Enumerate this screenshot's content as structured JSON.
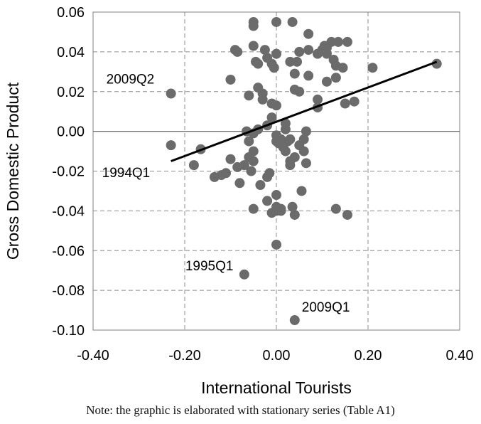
{
  "chart_data": {
    "type": "scatter",
    "xlabel": "International Tourists",
    "ylabel": "Gross Domestic Product",
    "xlim": [
      -0.4,
      0.4
    ],
    "ylim": [
      -0.1,
      0.06
    ],
    "x_ticks": [
      "-0.40",
      "-0.20",
      "0.00",
      "0.20",
      "0.40"
    ],
    "y_ticks": [
      "0.06",
      "0.04",
      "0.02",
      "0.00",
      "-0.02",
      "-0.04",
      "-0.06",
      "-0.08",
      "-0.10"
    ],
    "x_tick_values": [
      -0.4,
      -0.2,
      0.0,
      0.2,
      0.4
    ],
    "y_tick_values": [
      0.06,
      0.04,
      0.02,
      0.0,
      -0.02,
      -0.04,
      -0.06,
      -0.08,
      -0.1
    ],
    "grid": "dashed",
    "marker_color": "#6b6b6b",
    "trendline": {
      "x": [
        -0.23,
        0.35
      ],
      "y": [
        -0.015,
        0.035
      ]
    },
    "annotations": [
      {
        "text": "2009Q2",
        "x": -0.23,
        "y": 0.019
      },
      {
        "text": "1994Q1",
        "x": -0.23,
        "y": -0.007
      },
      {
        "text": "1995Q1",
        "x": -0.07,
        "y": -0.072
      },
      {
        "text": "2009Q1",
        "x": 0.04,
        "y": -0.095
      }
    ],
    "points": [
      [
        -0.23,
        0.019
      ],
      [
        -0.23,
        -0.007
      ],
      [
        -0.07,
        -0.072
      ],
      [
        0.04,
        -0.095
      ],
      [
        0.35,
        0.034
      ],
      [
        -0.05,
        0.055
      ],
      [
        -0.05,
        0.053
      ],
      [
        0.0,
        0.055
      ],
      [
        0.035,
        0.055
      ],
      [
        0.07,
        0.049
      ],
      [
        -0.09,
        0.041
      ],
      [
        -0.085,
        0.04
      ],
      [
        -0.05,
        0.043
      ],
      [
        -0.025,
        0.041
      ],
      [
        0.0,
        0.039
      ],
      [
        0.05,
        0.04
      ],
      [
        0.07,
        0.041
      ],
      [
        0.09,
        0.039
      ],
      [
        0.1,
        0.041
      ],
      [
        0.105,
        0.043
      ],
      [
        0.11,
        0.042
      ],
      [
        0.12,
        0.045
      ],
      [
        0.135,
        0.045
      ],
      [
        0.155,
        0.045
      ],
      [
        -0.045,
        0.035
      ],
      [
        -0.04,
        0.034
      ],
      [
        -0.02,
        0.037
      ],
      [
        -0.01,
        0.034
      ],
      [
        -0.005,
        0.032
      ],
      [
        0.03,
        0.035
      ],
      [
        0.045,
        0.035
      ],
      [
        0.11,
        0.039
      ],
      [
        0.125,
        0.036
      ],
      [
        0.13,
        0.033
      ],
      [
        0.145,
        0.032
      ],
      [
        0.21,
        0.032
      ],
      [
        -0.1,
        0.026
      ],
      [
        -0.04,
        0.022
      ],
      [
        -0.03,
        0.019
      ],
      [
        0.04,
        0.029
      ],
      [
        0.07,
        0.028
      ],
      [
        0.11,
        0.025
      ],
      [
        0.13,
        0.027
      ],
      [
        -0.06,
        0.018
      ],
      [
        0.04,
        0.021
      ],
      [
        0.05,
        0.02
      ],
      [
        -0.03,
        0.016
      ],
      [
        -0.01,
        0.014
      ],
      [
        0.0,
        0.013
      ],
      [
        0.09,
        0.016
      ],
      [
        0.09,
        0.012
      ],
      [
        0.15,
        0.014
      ],
      [
        0.17,
        0.015
      ],
      [
        -0.01,
        0.007
      ],
      [
        -0.02,
        0.003
      ],
      [
        0.02,
        0.004
      ],
      [
        0.02,
        0.001
      ],
      [
        -0.065,
        0.0
      ],
      [
        -0.05,
        -0.001
      ],
      [
        -0.04,
        0.001
      ],
      [
        0.065,
        0.0
      ],
      [
        0.0,
        -0.002
      ],
      [
        0.0,
        -0.005
      ],
      [
        -0.06,
        -0.005
      ],
      [
        0.005,
        -0.006
      ],
      [
        0.025,
        -0.005
      ],
      [
        0.01,
        -0.004
      ],
      [
        0.03,
        -0.004
      ],
      [
        0.05,
        -0.007
      ],
      [
        0.06,
        -0.004
      ],
      [
        0.015,
        -0.008
      ],
      [
        0.02,
        -0.01
      ],
      [
        -0.05,
        -0.01
      ],
      [
        -0.06,
        -0.013
      ],
      [
        0.06,
        -0.01
      ],
      [
        0.03,
        -0.015
      ],
      [
        0.04,
        -0.013
      ],
      [
        -0.165,
        -0.009
      ],
      [
        -0.1,
        -0.014
      ],
      [
        -0.05,
        -0.015
      ],
      [
        -0.07,
        -0.017
      ],
      [
        -0.18,
        -0.017
      ],
      [
        -0.085,
        -0.018
      ],
      [
        0.03,
        -0.017
      ],
      [
        0.065,
        -0.016
      ],
      [
        -0.11,
        -0.021
      ],
      [
        -0.055,
        -0.02
      ],
      [
        -0.015,
        -0.021
      ],
      [
        -0.12,
        -0.022
      ],
      [
        -0.135,
        -0.023
      ],
      [
        -0.02,
        -0.023
      ],
      [
        -0.08,
        -0.026
      ],
      [
        -0.035,
        -0.027
      ],
      [
        0.0,
        -0.032
      ],
      [
        0.055,
        -0.03
      ],
      [
        -0.02,
        -0.035
      ],
      [
        0.0,
        -0.038
      ],
      [
        0.01,
        -0.039
      ],
      [
        0.035,
        -0.038
      ],
      [
        -0.05,
        -0.039
      ],
      [
        0.01,
        -0.04
      ],
      [
        0.13,
        -0.039
      ],
      [
        -0.01,
        -0.041
      ],
      [
        0.04,
        -0.042
      ],
      [
        0.0,
        -0.04
      ],
      [
        0.155,
        -0.042
      ],
      [
        0.0,
        -0.057
      ]
    ]
  },
  "footer": {
    "note": "Note: the graphic is elaborated with stationary series (Table A1)"
  }
}
